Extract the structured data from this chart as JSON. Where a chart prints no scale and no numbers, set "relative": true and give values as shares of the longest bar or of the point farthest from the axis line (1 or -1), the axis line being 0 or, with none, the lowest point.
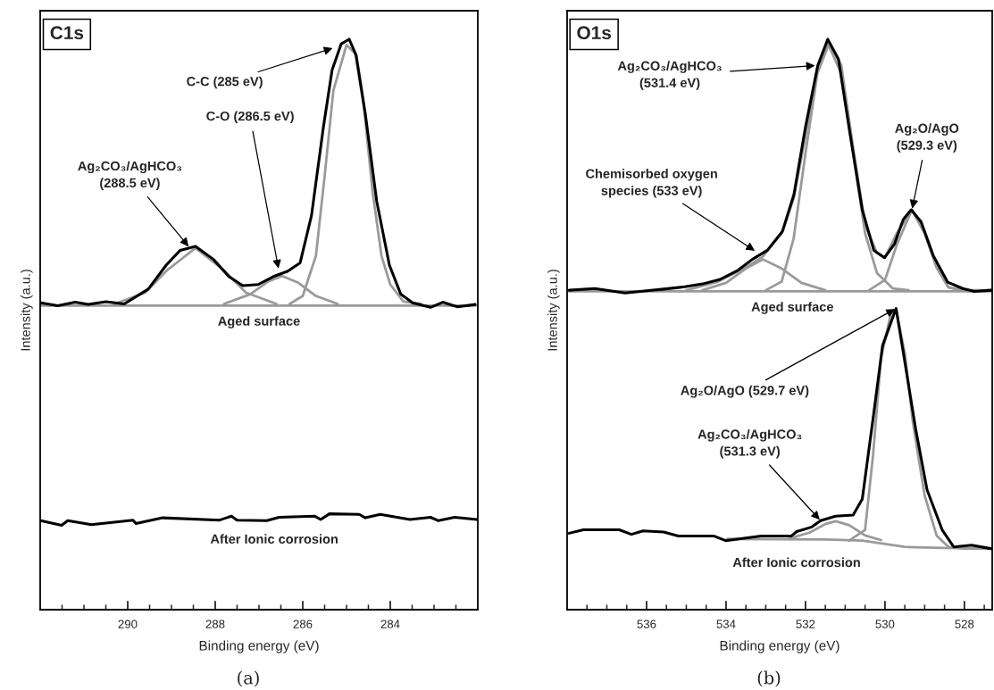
{
  "chart_data": [
    {
      "type": "line",
      "title": "C1s",
      "xlabel": "Binding energy (eV)",
      "ylabel": "Intensity (a.u.)",
      "relative": true,
      "xlim": [
        292,
        282
      ],
      "xticks": [
        {
          "value": 291.5,
          "label": null
        },
        {
          "value": 291,
          "label": null
        },
        {
          "value": 290.5,
          "label": null
        },
        290,
        {
          "value": 289.5,
          "label": null
        },
        {
          "value": 289,
          "label": null
        },
        {
          "value": 288.5,
          "label": null
        },
        288,
        {
          "value": 287.5,
          "label": null
        },
        {
          "value": 287,
          "label": null
        },
        {
          "value": 286.5,
          "label": null
        },
        286,
        {
          "value": 285.5,
          "label": null
        },
        {
          "value": 285,
          "label": null
        },
        {
          "value": 284.5,
          "label": null
        },
        284,
        {
          "value": 283.5,
          "label": null
        },
        {
          "value": 283,
          "label": null
        },
        {
          "value": 282.5,
          "label": null
        }
      ],
      "series": [
        {
          "color": "#9a9a9a",
          "x": [
            292,
            282.05
          ],
          "values": [
            0.533,
            0.533
          ]
        },
        {
          "color": "#9a9a9a",
          "x": [
            290.3,
            289.6,
            289.1,
            288.45,
            287.8,
            287.3,
            286.6
          ],
          "values": [
            0.536,
            0.556,
            0.595,
            0.634,
            0.595,
            0.556,
            0.536
          ]
        },
        {
          "color": "#9a9a9a",
          "x": [
            287.8,
            287.2,
            286.8,
            286.47,
            286.1,
            285.7,
            285.2
          ],
          "values": [
            0.536,
            0.553,
            0.575,
            0.585,
            0.573,
            0.55,
            0.536
          ]
        },
        {
          "color": "#9a9a9a",
          "x": [
            286.3,
            286.0,
            285.7,
            285.5,
            285.3,
            285.0,
            284.8,
            284.6,
            284.4,
            284.2,
            284.0,
            283.7,
            283.3
          ],
          "values": [
            0.536,
            0.55,
            0.62,
            0.76,
            0.91,
            0.99,
            0.975,
            0.88,
            0.73,
            0.62,
            0.57,
            0.54,
            0.536
          ]
        },
        {
          "name": "Aged surface",
          "color": "#000000",
          "x": [
            291.98,
            291.6,
            291.2,
            290.9,
            290.5,
            290.08,
            289.53,
            289.12,
            288.8,
            288.45,
            288.04,
            287.69,
            287.37,
            287.02,
            286.67,
            286.35,
            286.06,
            285.8,
            285.53,
            285.33,
            285.12,
            284.94,
            284.78,
            284.57,
            284.31,
            284.02,
            283.76,
            283.49,
            283.08,
            282.8,
            282.47,
            282.06
          ],
          "values": [
            0.538,
            0.533,
            0.539,
            0.535,
            0.54,
            0.536,
            0.562,
            0.604,
            0.63,
            0.637,
            0.614,
            0.584,
            0.568,
            0.57,
            0.584,
            0.593,
            0.608,
            0.691,
            0.845,
            0.946,
            0.992,
            1.0,
            0.972,
            0.869,
            0.716,
            0.604,
            0.553,
            0.538,
            0.53,
            0.539,
            0.531,
            0.535
          ]
        },
        {
          "name": "After Ionic corrosion",
          "color": "#000000",
          "x": [
            291.99,
            291.51,
            291.37,
            290.83,
            289.88,
            289.81,
            289.2,
            287.9,
            287.63,
            287.5,
            286.82,
            286.54,
            285.73,
            285.59,
            285.39,
            284.71,
            284.57,
            284.23,
            283.55,
            283.08,
            282.9,
            282.53,
            282.02
          ],
          "values": [
            0.156,
            0.148,
            0.156,
            0.149,
            0.157,
            0.151,
            0.161,
            0.157,
            0.164,
            0.157,
            0.156,
            0.162,
            0.164,
            0.158,
            0.168,
            0.167,
            0.161,
            0.167,
            0.158,
            0.162,
            0.156,
            0.162,
            0.158
          ]
        }
      ],
      "annotations": [
        {
          "text": "C-C (285 eV)",
          "x": 285.29,
          "y": 0.985
        },
        {
          "text": "C-O (286.5 eV)",
          "x": 286.55,
          "y": 0.596
        },
        {
          "text": "Ag₂CO₃/AgHCO₃\n(288.5 eV)",
          "x": 288.59,
          "y": 0.635
        },
        "(a)"
      ]
    },
    {
      "type": "line",
      "title": "O1s",
      "xlabel": "Binding energy (eV)",
      "ylabel": "Intensity (a.u.)",
      "relative": true,
      "xlim": [
        538,
        527.3
      ],
      "xticks": [
        {
          "value": 537.5,
          "label": null
        },
        {
          "value": 537,
          "label": null
        },
        {
          "value": 536.5,
          "label": null
        },
        536,
        {
          "value": 535.5,
          "label": null
        },
        {
          "value": 535,
          "label": null
        },
        {
          "value": 534.5,
          "label": null
        },
        534,
        {
          "value": 533.5,
          "label": null
        },
        {
          "value": 533,
          "label": null
        },
        {
          "value": 532.5,
          "label": null
        },
        532,
        {
          "value": 531.5,
          "label": null
        },
        {
          "value": 531,
          "label": null
        },
        {
          "value": 530.5,
          "label": null
        },
        530,
        {
          "value": 529.5,
          "label": null
        },
        {
          "value": 529,
          "label": null
        },
        {
          "value": 528.5,
          "label": null
        },
        528,
        {
          "value": 527.5,
          "label": null
        }
      ],
      "series": [
        {
          "color": "#9a9a9a",
          "x": [
            538,
            527.33
          ],
          "values": [
            0.558,
            0.558
          ]
        },
        {
          "color": "#9a9a9a",
          "x": [
            534.6,
            534.0,
            533.5,
            533.07,
            532.6,
            532.1,
            531.5
          ],
          "values": [
            0.56,
            0.573,
            0.598,
            0.614,
            0.598,
            0.573,
            0.56
          ]
        },
        {
          "color": "#9a9a9a",
          "x": [
            533.0,
            532.6,
            532.3,
            532.0,
            531.7,
            531.42,
            531.1,
            530.8,
            530.5,
            530.2,
            529.8,
            529.4
          ],
          "values": [
            0.56,
            0.575,
            0.65,
            0.8,
            0.94,
            0.99,
            0.94,
            0.8,
            0.66,
            0.59,
            0.563,
            0.56
          ]
        },
        {
          "color": "#9a9a9a",
          "x": [
            530.4,
            530.0,
            529.7,
            529.32,
            529.0,
            528.7,
            528.4,
            528.1
          ],
          "values": [
            0.56,
            0.578,
            0.64,
            0.701,
            0.66,
            0.6,
            0.565,
            0.56
          ]
        },
        {
          "color": "#9a9a9a",
          "x": [
            535.0,
            534.2,
            533.5,
            533.07,
            532.6,
            532.3,
            532.0,
            531.7,
            531.42,
            531.1,
            530.8,
            530.5,
            530.2,
            530.0,
            529.7,
            529.32,
            529.0,
            528.7,
            528.4,
            528.0,
            527.33
          ],
          "values": [
            0.56,
            0.575,
            0.6,
            0.619,
            0.66,
            0.72,
            0.83,
            0.95,
            0.995,
            0.955,
            0.81,
            0.675,
            0.625,
            0.617,
            0.66,
            0.701,
            0.66,
            0.6,
            0.565,
            0.56,
            0.56
          ]
        },
        {
          "name": "Aged surface",
          "color": "#000000",
          "x": [
            537.95,
            537.3,
            536.54,
            536.0,
            535.57,
            535.04,
            534.59,
            534.15,
            533.7,
            533.34,
            532.96,
            532.58,
            532.29,
            532.0,
            531.69,
            531.44,
            531.17,
            530.88,
            530.57,
            530.28,
            530.01,
            529.76,
            529.54,
            529.34,
            529.09,
            528.78,
            528.42,
            528.04,
            527.75,
            527.33
          ],
          "values": [
            0.56,
            0.563,
            0.555,
            0.559,
            0.562,
            0.566,
            0.571,
            0.579,
            0.595,
            0.614,
            0.63,
            0.663,
            0.728,
            0.846,
            0.954,
            1.0,
            0.965,
            0.835,
            0.701,
            0.63,
            0.617,
            0.641,
            0.684,
            0.701,
            0.68,
            0.62,
            0.574,
            0.563,
            0.558,
            0.56
          ]
        },
        {
          "color": "#9a9a9a",
          "x": [
            533.97,
            531.5,
            530.57,
            529.5,
            528.5,
            527.33
          ],
          "values": [
            0.124,
            0.123,
            0.121,
            0.11,
            0.108,
            0.107
          ]
        },
        {
          "color": "#9a9a9a",
          "x": [
            532.4,
            531.9,
            531.5,
            531.24,
            530.9,
            530.5,
            530.1
          ],
          "values": [
            0.125,
            0.135,
            0.15,
            0.155,
            0.148,
            0.13,
            0.122
          ]
        },
        {
          "color": "#9a9a9a",
          "x": [
            530.9,
            530.5,
            530.3,
            530.1,
            529.85,
            529.72,
            529.5,
            529.3,
            529.0,
            528.7,
            528.4,
            528.0,
            527.33
          ],
          "values": [
            0.121,
            0.14,
            0.27,
            0.44,
            0.52,
            0.525,
            0.45,
            0.33,
            0.2,
            0.13,
            0.11,
            0.107,
            0.107
          ]
        },
        {
          "name": "After Ionic corrosion",
          "color": "#000000",
          "x": [
            537.95,
            537.59,
            536.69,
            536.38,
            536.09,
            535.57,
            535.2,
            534.3,
            534.01,
            533.12,
            532.36,
            532.22,
            531.84,
            531.62,
            531.24,
            530.8,
            530.57,
            530.28,
            530.06,
            529.72,
            529.54,
            529.23,
            528.94,
            528.56,
            528.27,
            527.82,
            527.33
          ],
          "values": [
            0.134,
            0.14,
            0.14,
            0.132,
            0.138,
            0.136,
            0.129,
            0.129,
            0.121,
            0.129,
            0.129,
            0.137,
            0.145,
            0.156,
            0.164,
            0.166,
            0.194,
            0.345,
            0.463,
            0.528,
            0.452,
            0.318,
            0.21,
            0.14,
            0.11,
            0.113,
            0.107
          ]
        }
      ],
      "annotations": [
        {
          "text": "Ag₂CO₃/AgHCO₃\n(531.4 eV)",
          "x": 531.73,
          "y": 0.954
        },
        {
          "text": "Ag₂O/AgO\n(529.3 eV)",
          "x": 529.32,
          "y": 0.701
        },
        {
          "text": "Chemisorbed oxygen\nspecies (533 eV)",
          "x": 533.25,
          "y": 0.628
        },
        {
          "text": "Ag₂O/AgO (529.7 eV)",
          "x": 529.72,
          "y": 0.528
        },
        {
          "text": "Ag₂CO₃/AgHCO₃\n(531.3 eV)",
          "x": 531.62,
          "y": 0.156
        },
        "(b)"
      ]
    }
  ]
}
